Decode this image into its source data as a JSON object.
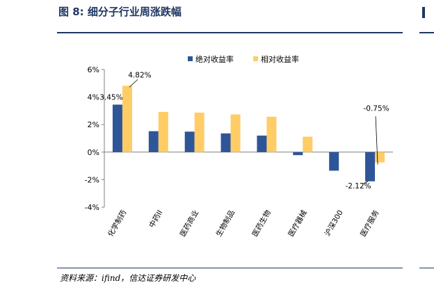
{
  "figure": {
    "title": "图 8:  细分子行业周涨跌幅",
    "source": "资料来源：ifind，信达证券研发中心"
  },
  "chart_data": {
    "type": "bar",
    "categories": [
      "化学制药",
      "中药II",
      "医药商业",
      "生物制品",
      "医药生物",
      "医疗器械",
      "沪深300",
      "医疗服务"
    ],
    "series": [
      {
        "name": "绝对收益率",
        "color": "#2e5597",
        "values": [
          3.45,
          1.52,
          1.49,
          1.36,
          1.2,
          -0.22,
          -1.35,
          -2.12
        ]
      },
      {
        "name": "相对收益率",
        "color": "#ffcc66",
        "values": [
          4.82,
          2.92,
          2.87,
          2.74,
          2.57,
          1.12,
          0.0,
          -0.75
        ]
      }
    ],
    "y_ticks": [
      "-4%",
      "-2%",
      "0%",
      "2%",
      "4%",
      "6%"
    ],
    "ylim": [
      -4,
      6
    ],
    "legend_position": "top",
    "grid": false,
    "data_labels": [
      "3.45%",
      "4.82%",
      "-2.12%",
      "-0.75%"
    ]
  }
}
